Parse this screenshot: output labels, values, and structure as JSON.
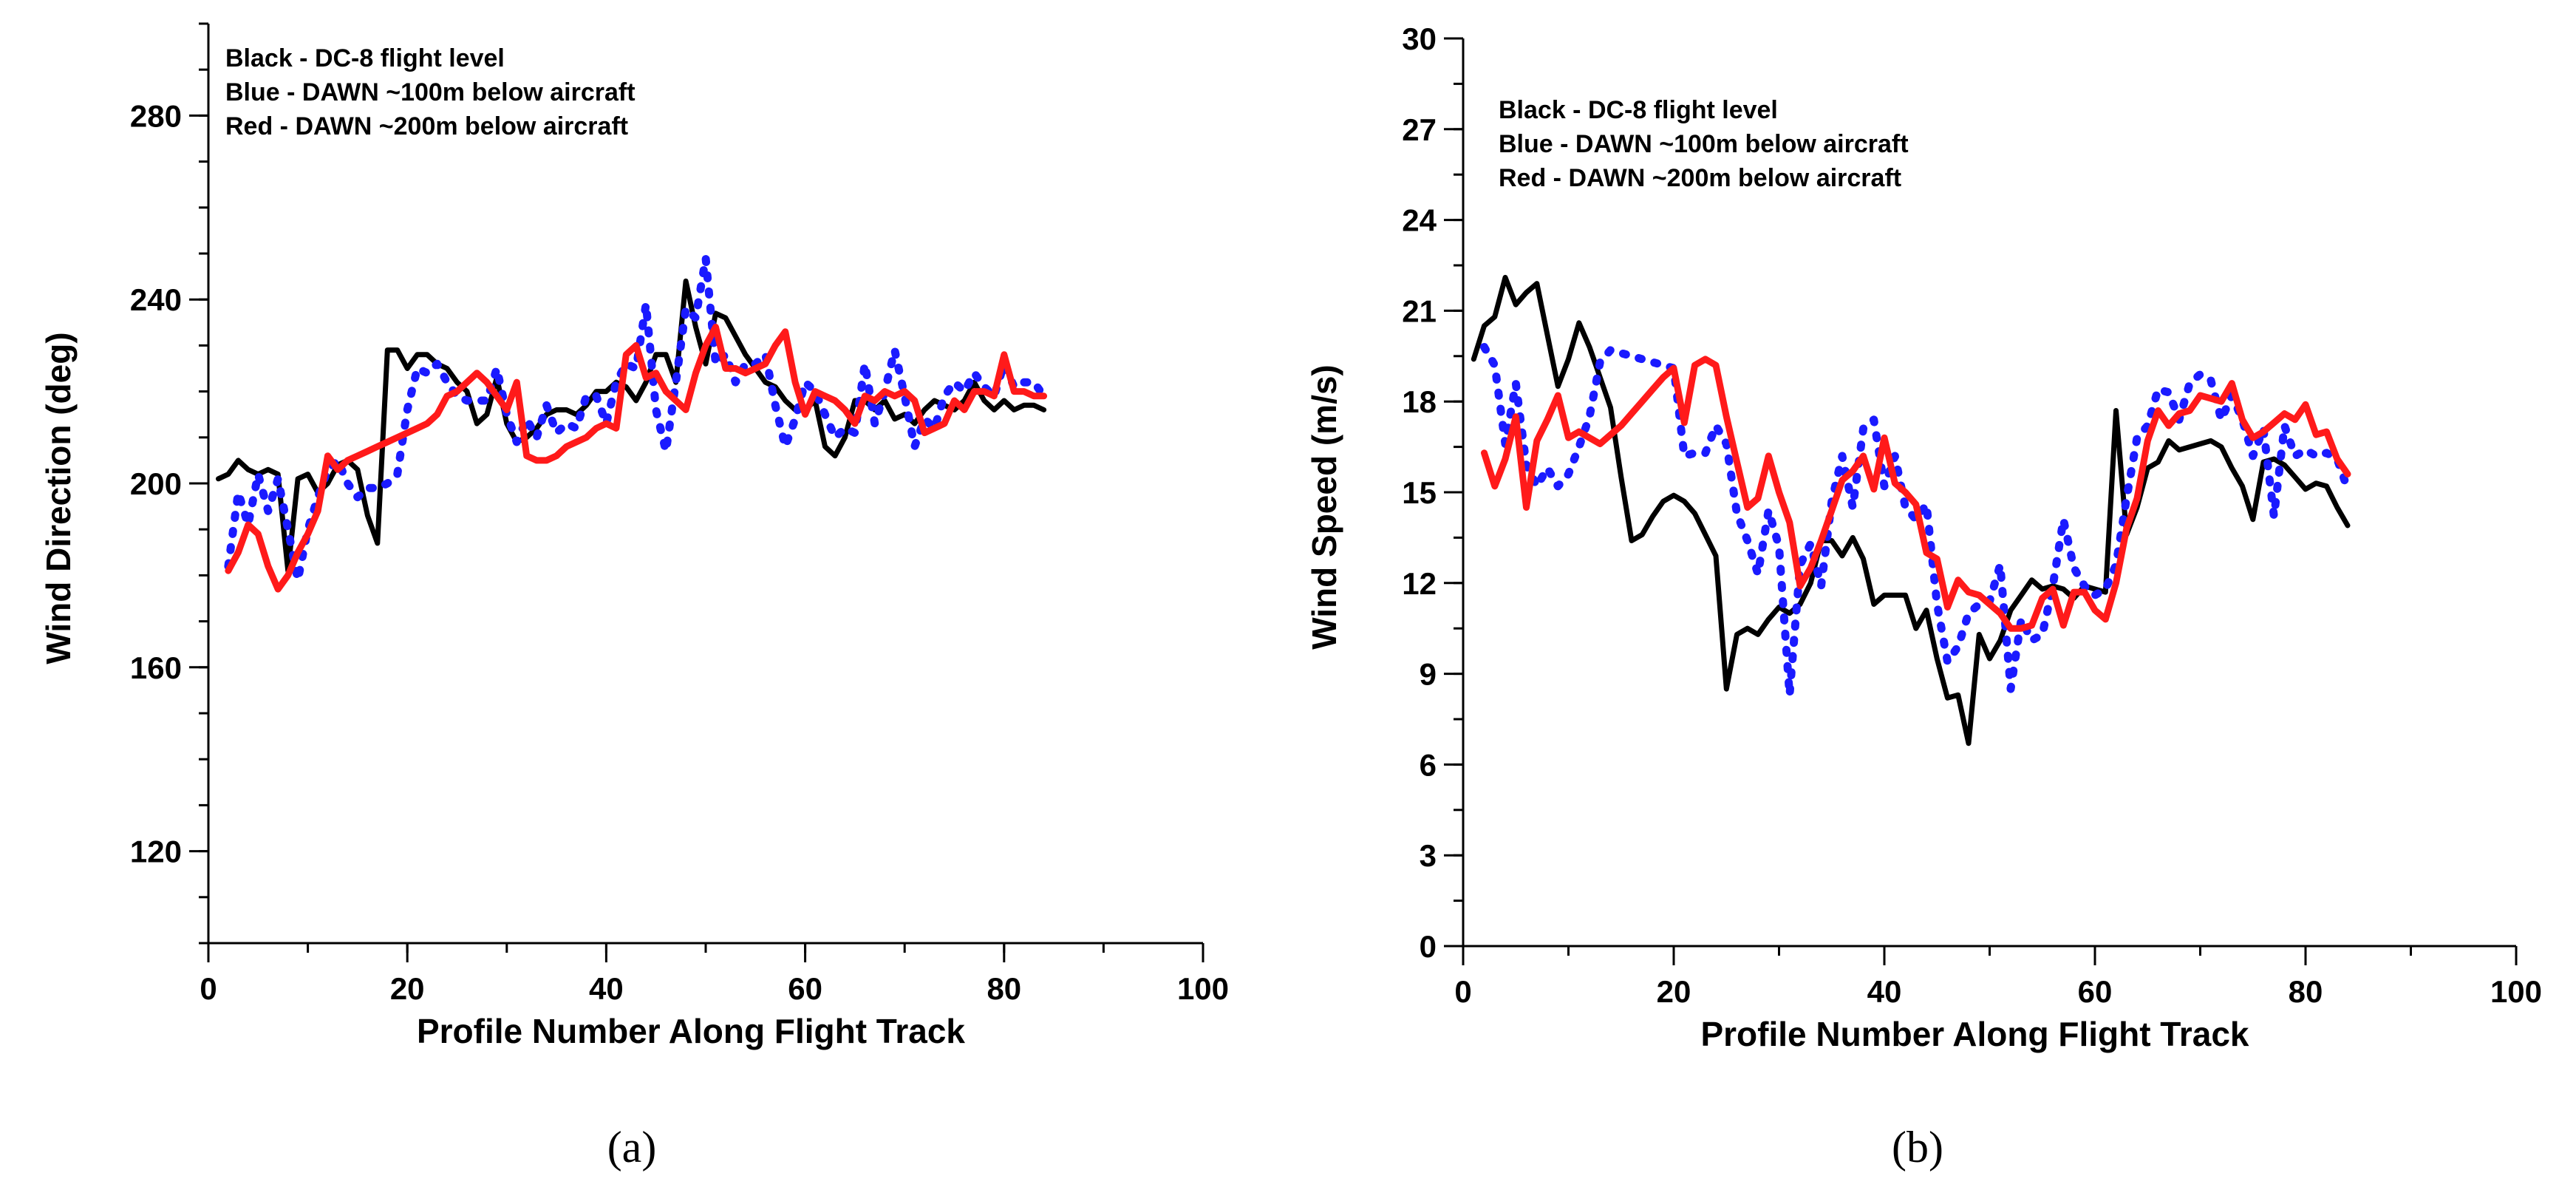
{
  "chart_data": [
    {
      "type": "line",
      "panel_label": "(a)",
      "title": "",
      "xlabel": "Profile Number Along Flight Track",
      "ylabel": "Wind Direction (deg)",
      "xlim": [
        0,
        100
      ],
      "ylim": [
        100,
        300
      ],
      "xticks": [
        0,
        20,
        40,
        60,
        80,
        100
      ],
      "yticks": [
        120,
        160,
        200,
        240,
        280
      ],
      "legend": [
        "Black - DC-8 flight level",
        "Blue - DAWN ~100m below aircraft",
        "Red - DAWN  ~200m below aircraft"
      ],
      "series": [
        {
          "name": "Black - DC-8 flight level",
          "color": "#000000",
          "style": "solid",
          "x": [
            1,
            2,
            3,
            4,
            5,
            6,
            7,
            8,
            9,
            10,
            11,
            12,
            13,
            14,
            15,
            16,
            17,
            18,
            19,
            20,
            21,
            22,
            23,
            24,
            25,
            26,
            27,
            28,
            29,
            30,
            31,
            32,
            33,
            34,
            35,
            36,
            37,
            38,
            39,
            40,
            41,
            42,
            43,
            44,
            45,
            46,
            47,
            48,
            49,
            50,
            51,
            52,
            53,
            54,
            55,
            56,
            57,
            58,
            59,
            60,
            61,
            62,
            63,
            64,
            65,
            66,
            67,
            68,
            69,
            70,
            71,
            72,
            73,
            74,
            75,
            76,
            77,
            78,
            79,
            80,
            81,
            82,
            83,
            84
          ],
          "y": [
            201,
            202,
            205,
            203,
            202,
            203,
            202,
            181,
            201,
            202,
            198,
            200,
            204,
            205,
            203,
            193,
            187,
            229,
            229,
            225,
            228,
            228,
            226,
            225,
            222,
            220,
            213,
            215,
            223,
            213,
            209,
            210,
            212,
            215,
            216,
            216,
            215,
            217,
            220,
            220,
            222,
            221,
            218,
            222,
            228,
            228,
            222,
            244,
            234,
            226,
            237,
            236,
            232,
            228,
            225,
            222,
            221,
            218,
            216,
            216,
            218,
            208,
            206,
            210,
            218,
            218,
            216,
            218,
            214,
            215,
            213,
            216,
            218,
            217,
            216,
            218,
            222,
            218,
            216,
            218,
            216,
            217,
            217,
            216
          ]
        },
        {
          "name": "Blue - DAWN ~100m below aircraft",
          "color": "#1a1aff",
          "style": "dotted",
          "x": [
            2,
            3,
            4,
            5,
            6,
            7,
            8,
            9,
            10,
            11,
            12,
            13,
            14,
            15,
            16,
            17,
            18,
            19,
            20,
            21,
            22,
            23,
            24,
            25,
            26,
            27,
            28,
            29,
            30,
            31,
            32,
            33,
            34,
            35,
            36,
            37,
            38,
            39,
            40,
            41,
            42,
            43,
            44,
            45,
            46,
            47,
            48,
            49,
            50,
            51,
            52,
            53,
            54,
            55,
            56,
            57,
            58,
            59,
            60,
            61,
            62,
            63,
            64,
            65,
            66,
            67,
            68,
            69,
            70,
            71,
            72,
            73,
            74,
            75,
            76,
            77,
            78,
            79,
            80,
            81,
            82,
            83,
            84
          ],
          "y": [
            182,
            198,
            191,
            202,
            194,
            201,
            190,
            179,
            190,
            197,
            203,
            205,
            200,
            197,
            199,
            199,
            200,
            202,
            216,
            225,
            224,
            226,
            222,
            219,
            218,
            218,
            218,
            225,
            215,
            209,
            214,
            210,
            217,
            211,
            213,
            212,
            219,
            219,
            213,
            222,
            226,
            225,
            239,
            216,
            207,
            222,
            238,
            236,
            249,
            226,
            228,
            222,
            226,
            226,
            228,
            217,
            208,
            214,
            222,
            220,
            215,
            210,
            212,
            211,
            226,
            213,
            220,
            229,
            219,
            208,
            214,
            212,
            219,
            222,
            220,
            224,
            221,
            219,
            226,
            221,
            222,
            222,
            219
          ]
        },
        {
          "name": "Red - DAWN  ~200m below aircraft",
          "color": "#ff1a1a",
          "style": "solid",
          "x": [
            2,
            3,
            4,
            5,
            6,
            7,
            8,
            9,
            10,
            11,
            12,
            13,
            14,
            15,
            16,
            17,
            18,
            19,
            20,
            21,
            22,
            23,
            24,
            25,
            26,
            27,
            28,
            29,
            30,
            31,
            32,
            33,
            34,
            35,
            36,
            37,
            38,
            39,
            40,
            41,
            42,
            43,
            44,
            45,
            46,
            47,
            48,
            49,
            50,
            51,
            52,
            53,
            54,
            55,
            56,
            57,
            58,
            59,
            60,
            61,
            62,
            63,
            64,
            65,
            66,
            67,
            68,
            69,
            70,
            71,
            72,
            73,
            74,
            75,
            76,
            77,
            78,
            79,
            80,
            81,
            82,
            83,
            84
          ],
          "y": [
            181,
            185,
            191,
            189,
            182,
            177,
            180,
            185,
            189,
            194,
            206,
            203,
            205,
            206,
            207,
            208,
            209,
            210,
            211,
            212,
            213,
            215,
            219,
            220,
            222,
            224,
            222,
            219,
            216,
            222,
            206,
            205,
            205,
            206,
            208,
            209,
            210,
            212,
            213,
            212,
            228,
            230,
            223,
            224,
            220,
            218,
            216,
            224,
            230,
            234,
            225,
            225,
            224,
            225,
            226,
            230,
            233,
            222,
            215,
            220,
            219,
            218,
            216,
            213,
            219,
            218,
            220,
            219,
            220,
            218,
            211,
            212,
            213,
            218,
            216,
            220,
            220,
            219,
            228,
            220,
            220,
            219,
            219
          ]
        }
      ]
    },
    {
      "type": "line",
      "panel_label": "(b)",
      "title": "",
      "xlabel": "Profile Number Along Flight Track",
      "ylabel": "Wind Speed (m/s)",
      "xlim": [
        0,
        100
      ],
      "ylim": [
        0,
        30
      ],
      "xticks": [
        0,
        20,
        40,
        60,
        80,
        100
      ],
      "yticks": [
        0,
        3,
        6,
        9,
        12,
        15,
        18,
        21,
        24,
        27,
        30
      ],
      "legend": [
        "Black - DC-8 flight level",
        "Blue - DAWN ~100m below aircraft",
        "Red - DAWN  ~200m below aircraft"
      ],
      "series": [
        {
          "name": "Black - DC-8 flight level",
          "color": "#000000",
          "style": "solid",
          "x": [
            1,
            2,
            3,
            4,
            5,
            6,
            7,
            8,
            9,
            10,
            11,
            12,
            13,
            14,
            15,
            16,
            17,
            18,
            19,
            20,
            21,
            22,
            23,
            24,
            25,
            26,
            27,
            28,
            29,
            30,
            31,
            32,
            33,
            34,
            35,
            36,
            37,
            38,
            39,
            40,
            41,
            42,
            43,
            44,
            45,
            46,
            47,
            48,
            49,
            50,
            51,
            52,
            53,
            54,
            55,
            56,
            57,
            58,
            59,
            60,
            61,
            62,
            63,
            64,
            65,
            66,
            67,
            68,
            69,
            70,
            71,
            72,
            73,
            74,
            75,
            76,
            77,
            78,
            79,
            80,
            81,
            82,
            83,
            84
          ],
          "y": [
            19.4,
            20.5,
            20.8,
            22.1,
            21.2,
            21.6,
            21.9,
            20.2,
            18.5,
            19.4,
            20.6,
            19.8,
            18.8,
            17.8,
            15.5,
            13.4,
            13.6,
            14.2,
            14.7,
            14.9,
            14.7,
            14.3,
            13.6,
            12.9,
            8.5,
            10.3,
            10.5,
            10.3,
            10.8,
            11.2,
            11.0,
            11.3,
            12.0,
            13.4,
            13.4,
            12.9,
            13.5,
            12.8,
            11.3,
            11.6,
            11.6,
            11.6,
            10.5,
            11.1,
            9.5,
            8.2,
            8.3,
            6.7,
            10.3,
            9.5,
            10.1,
            11.1,
            11.6,
            12.1,
            11.8,
            11.9,
            11.8,
            11.5,
            11.9,
            11.8,
            11.7,
            17.7,
            13.6,
            14.5,
            15.8,
            16.0,
            16.7,
            16.4,
            16.5,
            16.6,
            16.7,
            16.5,
            15.8,
            15.2,
            14.1,
            16.0,
            16.1,
            15.9,
            15.5,
            15.1,
            15.3,
            15.2,
            14.5,
            13.9
          ]
        },
        {
          "name": "Blue - DAWN ~100m below aircraft",
          "color": "#1a1aff",
          "style": "dotted",
          "x": [
            2,
            3,
            4,
            5,
            6,
            7,
            8,
            9,
            10,
            11,
            12,
            13,
            14,
            15,
            16,
            17,
            18,
            19,
            20,
            21,
            22,
            23,
            24,
            25,
            26,
            27,
            28,
            29,
            30,
            31,
            32,
            33,
            34,
            35,
            36,
            37,
            38,
            39,
            40,
            41,
            42,
            43,
            44,
            45,
            46,
            47,
            48,
            49,
            50,
            51,
            52,
            53,
            54,
            55,
            56,
            57,
            58,
            59,
            60,
            61,
            62,
            63,
            64,
            65,
            66,
            67,
            68,
            69,
            70,
            71,
            72,
            73,
            74,
            75,
            76,
            77,
            78,
            79,
            80,
            81,
            82,
            83,
            84
          ],
          "y": [
            19.8,
            19.2,
            16.6,
            18.6,
            15.9,
            15.2,
            15.8,
            15.2,
            15.6,
            16.5,
            17.5,
            19.3,
            19.7,
            19.6,
            19.5,
            19.4,
            19.3,
            19.2,
            19.1,
            16.2,
            16.3,
            16.3,
            17.2,
            16.6,
            14.3,
            13.4,
            12.3,
            14.4,
            13.2,
            8.3,
            12.6,
            13.3,
            11.9,
            14.7,
            16.2,
            14.5,
            17.1,
            17.4,
            15.2,
            16.2,
            14.5,
            14.1,
            14.6,
            11.3,
            9.4,
            9.9,
            11.0,
            11.3,
            11.4,
            12.6,
            8.5,
            10.8,
            10.1,
            10.3,
            11.9,
            14.1,
            12.5,
            11.9,
            11.6,
            11.8,
            12.6,
            14.8,
            16.8,
            17.2,
            18.4,
            18.3,
            17.4,
            18.6,
            18.9,
            18.7,
            17.4,
            18.2,
            17.4,
            16.2,
            17.1,
            14.2,
            17.2,
            16.2,
            16.4,
            16.2,
            16.3,
            16.1,
            15.1
          ]
        },
        {
          "name": "Red - DAWN  ~200m below aircraft",
          "color": "#ff1a1a",
          "style": "solid",
          "x": [
            2,
            3,
            4,
            5,
            6,
            7,
            8,
            9,
            10,
            11,
            12,
            13,
            14,
            15,
            16,
            17,
            18,
            19,
            20,
            21,
            22,
            23,
            24,
            25,
            26,
            27,
            28,
            29,
            30,
            31,
            32,
            33,
            34,
            35,
            36,
            37,
            38,
            39,
            40,
            41,
            42,
            43,
            44,
            45,
            46,
            47,
            48,
            49,
            50,
            51,
            52,
            53,
            54,
            55,
            56,
            57,
            58,
            59,
            60,
            61,
            62,
            63,
            64,
            65,
            66,
            67,
            68,
            69,
            70,
            71,
            72,
            73,
            74,
            75,
            76,
            77,
            78,
            79,
            80,
            81,
            82,
            83,
            84
          ],
          "y": [
            16.3,
            15.2,
            16.1,
            17.5,
            14.5,
            16.7,
            17.4,
            18.2,
            16.8,
            17.0,
            16.8,
            16.6,
            16.9,
            17.2,
            17.6,
            18.0,
            18.4,
            18.8,
            19.1,
            17.3,
            19.2,
            19.4,
            19.2,
            17.5,
            16.0,
            14.5,
            14.8,
            16.2,
            15.0,
            14.0,
            11.9,
            12.5,
            13.4,
            14.4,
            15.4,
            15.7,
            16.2,
            15.1,
            16.8,
            15.3,
            15.0,
            14.6,
            13.0,
            12.8,
            11.2,
            12.1,
            11.7,
            11.6,
            11.3,
            11.0,
            10.5,
            10.5,
            10.6,
            11.5,
            11.8,
            10.6,
            11.7,
            11.7,
            11.1,
            10.8,
            12.0,
            13.8,
            14.8,
            16.7,
            17.7,
            17.2,
            17.6,
            17.7,
            18.2,
            18.1,
            18.0,
            18.6,
            17.4,
            16.8,
            17.0,
            17.3,
            17.6,
            17.4,
            17.9,
            16.9,
            17.0,
            16.1,
            15.6
          ]
        }
      ]
    }
  ]
}
